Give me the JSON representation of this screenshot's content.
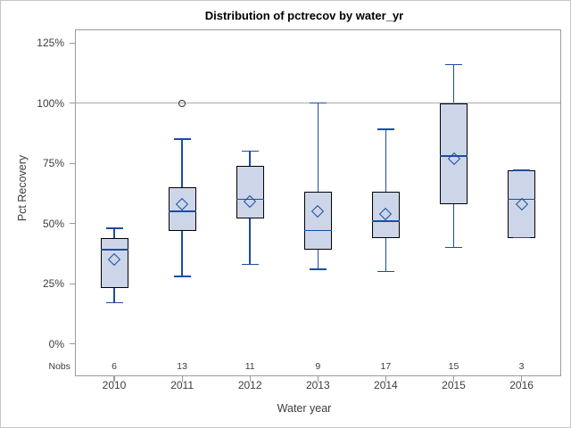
{
  "chart_data": {
    "type": "box",
    "title": "Distribution of pctrecov by water_yr",
    "xlabel": "Water year",
    "ylabel": "Pct Recovery",
    "nobs_label": "Nobs",
    "categories": [
      "2010",
      "2011",
      "2012",
      "2013",
      "2014",
      "2015",
      "2016"
    ],
    "nobs": [
      6,
      13,
      11,
      9,
      17,
      15,
      3
    ],
    "y_ticks": [
      0,
      25,
      50,
      75,
      100,
      125
    ],
    "y_tick_labels": [
      "0%",
      "25%",
      "50%",
      "75%",
      "100%",
      "125%"
    ],
    "ylim": [
      -13,
      131
    ],
    "reference_line": 100,
    "grid": "off",
    "legend": "none",
    "series": [
      {
        "category": "2010",
        "whisker_low": 17,
        "q1": 23,
        "median": 39,
        "mean": 35,
        "q3": 44,
        "whisker_high": 48,
        "outliers": []
      },
      {
        "category": "2011",
        "whisker_low": 28,
        "q1": 47,
        "median": 55,
        "mean": 58,
        "q3": 65,
        "whisker_high": 85,
        "outliers": [
          100
        ]
      },
      {
        "category": "2012",
        "whisker_low": 33,
        "q1": 52,
        "median": 60,
        "mean": 59,
        "q3": 74,
        "whisker_high": 80,
        "outliers": []
      },
      {
        "category": "2013",
        "whisker_low": 31,
        "q1": 39,
        "median": 47,
        "mean": 55,
        "q3": 63,
        "whisker_high": 100,
        "outliers": []
      },
      {
        "category": "2014",
        "whisker_low": 30,
        "q1": 44,
        "median": 51,
        "mean": 54,
        "q3": 63,
        "whisker_high": 89,
        "outliers": []
      },
      {
        "category": "2015",
        "whisker_low": 40,
        "q1": 58,
        "median": 78,
        "mean": 77,
        "q3": 100,
        "whisker_high": 116,
        "outliers": []
      },
      {
        "category": "2016",
        "whisker_low": 44,
        "q1": 44,
        "median": 60,
        "mean": 58,
        "q3": 72,
        "whisker_high": 72,
        "outliers": []
      }
    ],
    "colors": {
      "box_fill": "#ccd6e8",
      "box_border": "#000000",
      "whisker": "#1c4da0",
      "median": "#1c4da0",
      "mean_marker": "#1c4da0",
      "outlier": "#333333",
      "reference_line": "#aaaaaa",
      "axis_frame": "#9b9b9b",
      "text": "#3d3d3d"
    }
  }
}
